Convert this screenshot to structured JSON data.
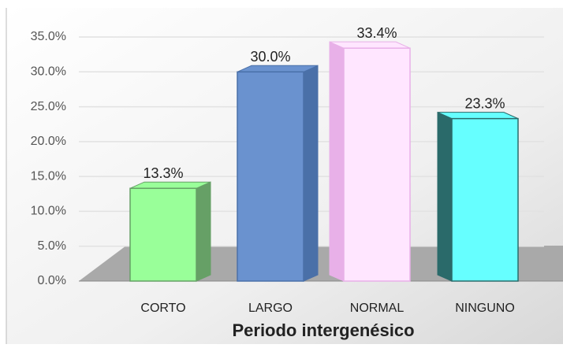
{
  "chart_data": {
    "type": "bar3d",
    "x_label": "Periodo intergenésico",
    "categories": [
      "CORTO",
      "LARGO",
      "NORMAL",
      "NINGUNO"
    ],
    "values": [
      13.3,
      30.0,
      33.4,
      23.3
    ],
    "value_labels": [
      "13.3%",
      "30.0%",
      "33.4%",
      "23.3%"
    ],
    "colors": [
      "#99ff99",
      "#6a92cf",
      "#ffe6ff",
      "#66ffff"
    ],
    "side_colors": [
      "#66a066",
      "#4a70a8",
      "#e8b0e8",
      "#2a6a6a"
    ],
    "ylim": [
      0,
      35
    ],
    "yticks": [
      {
        "value": 0,
        "label": "0.0%"
      },
      {
        "value": 5,
        "label": "5.0%"
      },
      {
        "value": 10,
        "label": "10.0%"
      },
      {
        "value": 15,
        "label": "15.0%"
      },
      {
        "value": 20,
        "label": "20.0%"
      },
      {
        "value": 25,
        "label": "25.0%"
      },
      {
        "value": 30,
        "label": "30.0%"
      },
      {
        "value": 35,
        "label": "35.0%"
      }
    ],
    "grid": true
  }
}
